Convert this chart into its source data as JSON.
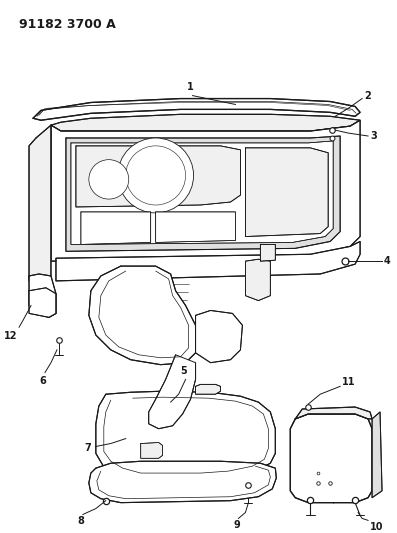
{
  "title": "91182 3700 A",
  "bg_color": "#ffffff",
  "line_color": "#1a1a1a",
  "lw_main": 0.8,
  "lw_thin": 0.5,
  "lw_detail": 0.4,
  "label_fontsize": 7.0,
  "title_fontsize": 9.0
}
